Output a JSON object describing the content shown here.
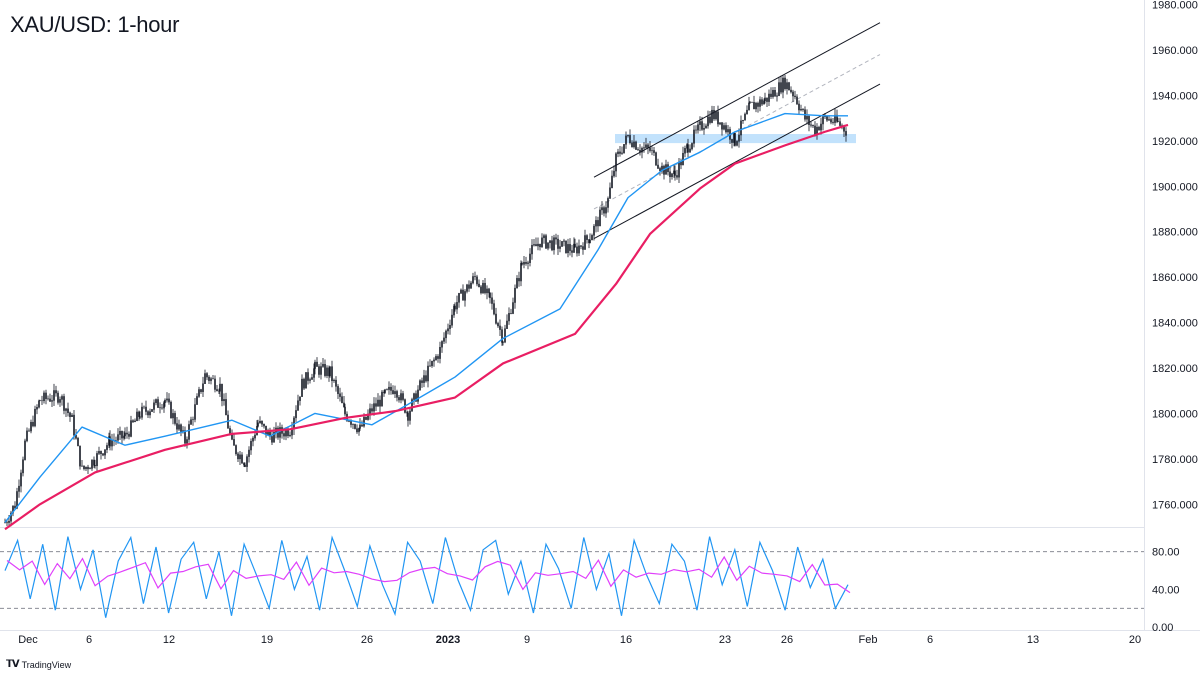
{
  "chart_title": "XAU/USD: 1-hour",
  "brand": {
    "logo_icon": "tradingview-logo-icon",
    "label": "TradingView"
  },
  "colors": {
    "candles": "#131722",
    "ma_fast": "#2196f3",
    "ma_slow": "#e91e63",
    "channel": "#131722",
    "channel_mid": "#b2b5be",
    "zone": "#90caf9",
    "stoch_k": "#2196f3",
    "stoch_d": "#e040fb"
  },
  "chart_data": [
    {
      "type": "candlestick",
      "title": "XAU/USD: 1-hour",
      "x_ticks": [
        "Dec",
        "6",
        "12",
        "19",
        "26",
        "2023",
        "9",
        "16",
        "23",
        "26",
        "Feb",
        "6",
        "13",
        "20"
      ],
      "y_ticks": [
        "1760.000",
        "1780.000",
        "1800.000",
        "1820.000",
        "1840.000",
        "1860.000",
        "1880.000",
        "1900.000",
        "1920.000",
        "1940.000",
        "1960.000",
        "1980.000"
      ],
      "ylim": [
        1750,
        1982
      ],
      "close_path": [
        [
          "Dec 1",
          1752
        ],
        [
          "Dec 2",
          1760
        ],
        [
          "Dec 3",
          1787
        ],
        [
          "Dec 4",
          1806
        ],
        [
          "Dec 5",
          1808
        ],
        [
          "Dec 5 b",
          1797
        ],
        [
          "Dec 6",
          1775
        ],
        [
          "Dec 7",
          1780
        ],
        [
          "Dec 8",
          1788
        ],
        [
          "Dec 9",
          1790
        ],
        [
          "Dec 11",
          1800
        ],
        [
          "Dec 12",
          1806
        ],
        [
          "Dec 13",
          1788
        ],
        [
          "Dec 14",
          1817
        ],
        [
          "Dec 15",
          1812
        ],
        [
          "Dec 16",
          1786
        ],
        [
          "Dec 17",
          1779
        ],
        [
          "Dec 18",
          1796
        ],
        [
          "Dec 19",
          1790
        ],
        [
          "Dec 20",
          1793
        ],
        [
          "Dec 21",
          1813
        ],
        [
          "Dec 22",
          1820
        ],
        [
          "Dec 23",
          1818
        ],
        [
          "Dec 24",
          1800
        ],
        [
          "Dec 25",
          1793
        ],
        [
          "Dec 26",
          1802
        ],
        [
          "Dec 27",
          1808
        ],
        [
          "Dec 28",
          1812
        ],
        [
          "Dec 29",
          1800
        ],
        [
          "Dec 30",
          1812
        ],
        [
          "Jan 1",
          1828
        ],
        [
          "Jan 2",
          1848
        ],
        [
          "Jan 3",
          1860
        ],
        [
          "Jan 4",
          1850
        ],
        [
          "Jan 5",
          1833
        ],
        [
          "Jan 6",
          1866
        ],
        [
          "Jan 7",
          1876
        ],
        [
          "Jan 8",
          1874
        ],
        [
          "Jan 9",
          1872
        ],
        [
          "Jan 10",
          1878
        ],
        [
          "Jan 11",
          1885
        ],
        [
          "Jan 12",
          1894
        ],
        [
          "Jan 13",
          1912
        ],
        [
          "Jan 14",
          1922
        ],
        [
          "Jan 15",
          1917
        ],
        [
          "Jan 16",
          1916
        ],
        [
          "Jan 17",
          1908
        ],
        [
          "Jan 18",
          1905
        ],
        [
          "Jan 19",
          1918
        ],
        [
          "Jan 20",
          1926
        ],
        [
          "Jan 21",
          1932
        ],
        [
          "Jan 22",
          1928
        ],
        [
          "Jan 23",
          1920
        ],
        [
          "Jan 24",
          1935
        ],
        [
          "Jan 25",
          1938
        ],
        [
          "Jan 26",
          1946
        ],
        [
          "Jan 26 b",
          1940
        ],
        [
          "Jan 27",
          1930
        ],
        [
          "Jan 28",
          1925
        ],
        [
          "Jan 29",
          1930
        ],
        [
          "Jan 30",
          1928
        ],
        [
          "Jan 31",
          1924
        ]
      ],
      "ma_fast": [
        [
          "Dec 1",
          1752
        ],
        [
          "Dec 4",
          1772
        ],
        [
          "Dec 6",
          1794
        ],
        [
          "Dec 9",
          1786
        ],
        [
          "Dec 12",
          1790
        ],
        [
          "Dec 16",
          1797
        ],
        [
          "Dec 19",
          1790
        ],
        [
          "Dec 22",
          1800
        ],
        [
          "Dec 26",
          1795
        ],
        [
          "Dec 29",
          1804
        ],
        [
          "Jan 2",
          1816
        ],
        [
          "Jan 5",
          1833
        ],
        [
          "Jan 8",
          1846
        ],
        [
          "Jan 11",
          1872
        ],
        [
          "Jan 14",
          1895
        ],
        [
          "Jan 17",
          1907
        ],
        [
          "Jan 20",
          1915
        ],
        [
          "Jan 23",
          1924
        ],
        [
          "Jan 26",
          1932
        ],
        [
          "Jan 29",
          1931
        ],
        [
          "Jan 31",
          1931
        ]
      ],
      "ma_slow": [
        [
          "Dec 1",
          1749
        ],
        [
          "Dec 4",
          1760
        ],
        [
          "Dec 7",
          1774
        ],
        [
          "Dec 12",
          1784
        ],
        [
          "Dec 16",
          1791
        ],
        [
          "Dec 20",
          1793
        ],
        [
          "Dec 24",
          1798
        ],
        [
          "Dec 28",
          1801
        ],
        [
          "Jan 2",
          1807
        ],
        [
          "Jan 5",
          1822
        ],
        [
          "Jan 9",
          1835
        ],
        [
          "Jan 13",
          1857
        ],
        [
          "Jan 16",
          1879
        ],
        [
          "Jan 20",
          1899
        ],
        [
          "Jan 23",
          1910
        ],
        [
          "Jan 26",
          1918
        ],
        [
          "Jan 29",
          1924
        ],
        [
          "Jan 31",
          1927
        ]
      ],
      "channel": {
        "upper": [
          [
            "Jan 13",
            1904
          ],
          [
            "Feb 1",
            1972
          ]
        ],
        "middle": [
          [
            "Jan 13",
            1890
          ],
          [
            "Feb 1",
            1958
          ]
        ],
        "lower": [
          [
            "Jan 13",
            1877
          ],
          [
            "Feb 1",
            1945
          ]
        ]
      },
      "zone": {
        "y_from": 1919,
        "y_to": 1923,
        "x_from": "Jan 15",
        "x_to": "Jan 31"
      }
    },
    {
      "type": "line",
      "title": "",
      "y_ticks": [
        "0.00",
        "40.00",
        "80.00"
      ],
      "ylim": [
        -3,
        103
      ],
      "levels": [
        20,
        80
      ],
      "series": [
        {
          "values": [
            60,
            92,
            30,
            88,
            18,
            96,
            40,
            82,
            10,
            70,
            95,
            25,
            85,
            15,
            72,
            90,
            30,
            80,
            12,
            88,
            55,
            20,
            92,
            40,
            75,
            18,
            95,
            60,
            22,
            86,
            45,
            14,
            90,
            70,
            25,
            95,
            50,
            18,
            82,
            92,
            35,
            70,
            15,
            88,
            62,
            20,
            95,
            40,
            78,
            12,
            92,
            55,
            25,
            88,
            70,
            18,
            96,
            45,
            82,
            22,
            90,
            60,
            18,
            85,
            42,
            72,
            20,
            45
          ]
        }
      ]
    }
  ]
}
